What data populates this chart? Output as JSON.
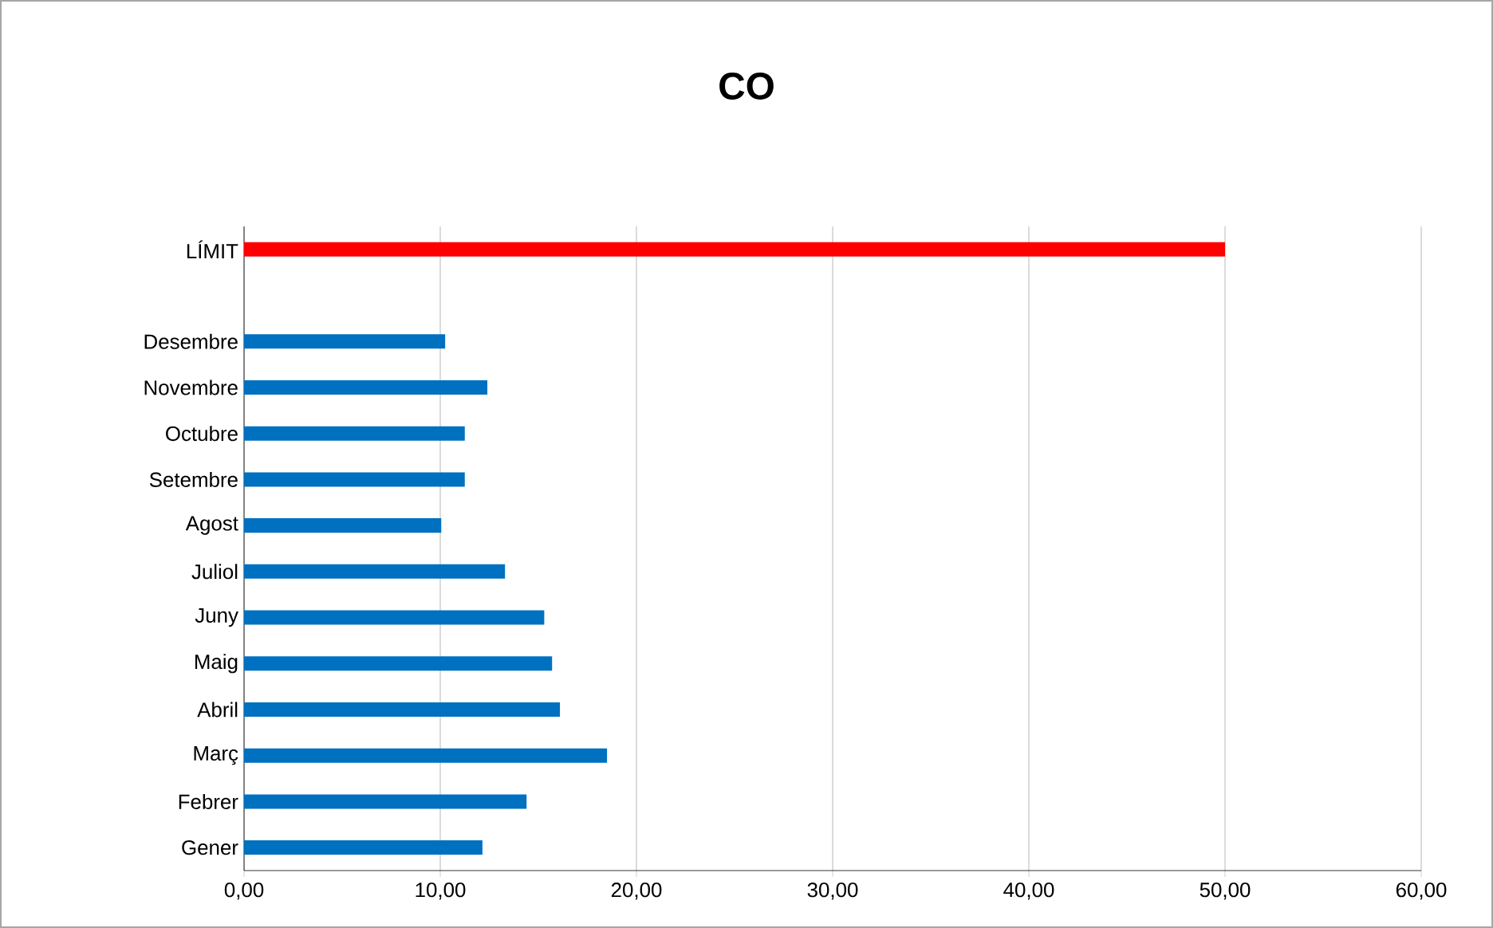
{
  "chart_data": {
    "type": "bar",
    "orientation": "horizontal",
    "title": "CO",
    "categories": [
      "LÍMIT",
      null,
      "Desembre",
      "Novembre",
      "Octubre",
      "Setembre",
      "Agost",
      "Juliol",
      "Juny",
      "Maig",
      "Abril",
      "Març",
      "Febrer",
      "Gener"
    ],
    "values": [
      50,
      null,
      10.25,
      12.4,
      11.25,
      11.25,
      10.05,
      13.3,
      15.3,
      15.7,
      16.1,
      18.5,
      14.4,
      12.15
    ],
    "colors": [
      "#ff0000",
      "#0070c0",
      "#0070c0",
      "#0070c0",
      "#0070c0",
      "#0070c0",
      "#0070c0",
      "#0070c0",
      "#0070c0",
      "#0070c0",
      "#0070c0",
      "#0070c0",
      "#0070c0",
      "#0070c0"
    ],
    "xlim": [
      0,
      60
    ],
    "xticks": [
      {
        "value": 0,
        "label": "0,00"
      },
      {
        "value": 10,
        "label": "10,00"
      },
      {
        "value": 20,
        "label": "20,00"
      },
      {
        "value": 30,
        "label": "30,00"
      },
      {
        "value": 40,
        "label": "40,00"
      },
      {
        "value": 50,
        "label": "50,00"
      },
      {
        "value": 60,
        "label": "60,00"
      }
    ],
    "grid": "x"
  }
}
